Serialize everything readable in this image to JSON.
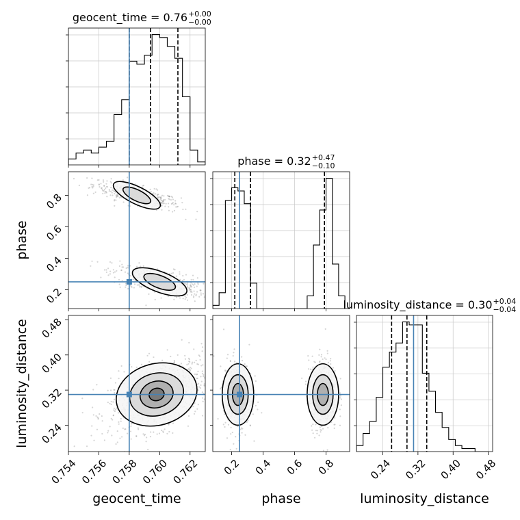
{
  "chart_data": {
    "type": "corner",
    "parameters": [
      "geocent_time",
      "phase",
      "luminosity_distance"
    ],
    "truth": {
      "geocent_time": 0.758,
      "phase": 0.25,
      "luminosity_distance": 0.31
    },
    "titles": [
      {
        "param": "geocent_time",
        "text": "geocent_time = 0.76",
        "sup": "+0.00",
        "sub": "−0.00"
      },
      {
        "param": "phase",
        "text": "phase = 0.32",
        "sup": "+0.47",
        "sub": "−0.10"
      },
      {
        "param": "luminosity_distance",
        "text": "luminosity_distance = 0.30",
        "sup": "+0.04",
        "sub": "−0.04"
      }
    ],
    "axes": {
      "geocent_time": {
        "range": [
          0.754,
          0.763
        ],
        "ticks": [
          0.754,
          0.756,
          0.758,
          0.76,
          0.762
        ],
        "tick_labels": [
          "0.754",
          "0.756",
          "0.758",
          "0.760",
          "0.762"
        ]
      },
      "phase": {
        "range": [
          0.08,
          0.95
        ],
        "ticks_x": [
          0.2,
          0.4,
          0.6,
          0.8
        ],
        "tick_labels_x": [
          "0.2",
          "0.4",
          "0.6",
          "0.8"
        ],
        "ticks_y": [
          0.2,
          0.4,
          0.6,
          0.8
        ],
        "tick_labels_y": [
          "0.2",
          "0.4",
          "0.6",
          "0.8"
        ]
      },
      "luminosity_distance": {
        "range": [
          0.18,
          0.49
        ],
        "ticks": [
          0.24,
          0.32,
          0.4,
          0.48
        ],
        "tick_labels": [
          "0.24",
          "0.32",
          "0.40",
          "0.48"
        ]
      }
    },
    "marginals": {
      "geocent_time": {
        "bin_edges": [
          0.754,
          0.7545,
          0.755,
          0.7555,
          0.756,
          0.7565,
          0.757,
          0.7575,
          0.758,
          0.7585,
          0.759,
          0.7595,
          0.76,
          0.7605,
          0.761,
          0.7615,
          0.762,
          0.7625,
          0.763
        ],
        "counts": [
          2,
          4,
          5,
          4,
          6,
          8,
          17,
          22,
          35,
          34,
          37,
          44,
          43,
          40,
          36,
          23,
          5,
          1
        ],
        "quantiles": [
          0.758,
          0.7594,
          0.7612
        ]
      },
      "phase": {
        "bin_edges": [
          0.08,
          0.12,
          0.16,
          0.2,
          0.24,
          0.28,
          0.32,
          0.36,
          0.4,
          0.44,
          0.48,
          0.52,
          0.56,
          0.6,
          0.64,
          0.68,
          0.72,
          0.76,
          0.8,
          0.84,
          0.88,
          0.92
        ],
        "counts": [
          1,
          5,
          34,
          38,
          37,
          33,
          8,
          0,
          0,
          0,
          0,
          0,
          0,
          0,
          0,
          4,
          20,
          31,
          41,
          14,
          4
        ],
        "quantiles": [
          0.22,
          0.32,
          0.79
        ]
      },
      "luminosity_distance": {
        "bin_edges": [
          0.18,
          0.195,
          0.21,
          0.225,
          0.24,
          0.255,
          0.27,
          0.285,
          0.3,
          0.315,
          0.33,
          0.345,
          0.36,
          0.375,
          0.39,
          0.405,
          0.42,
          0.435,
          0.45,
          0.465,
          0.48
        ],
        "counts": [
          2,
          6,
          10,
          18,
          28,
          33,
          36,
          43,
          42,
          42,
          26,
          20,
          13,
          8,
          4,
          2,
          1,
          1,
          0,
          0
        ],
        "quantiles": [
          0.26,
          0.295,
          0.34
        ]
      }
    },
    "joints": [
      {
        "x": "geocent_time",
        "y": "phase",
        "modes": [
          {
            "cx": 0.7585,
            "cy": 0.8,
            "sx": 0.0011,
            "sy": 0.035,
            "rho": -0.75,
            "weight": 0.5
          },
          {
            "cx": 0.76,
            "cy": 0.25,
            "sx": 0.0012,
            "sy": 0.04,
            "rho": -0.6,
            "weight": 0.5
          }
        ],
        "contours": [
          {
            "cx": 0.7585,
            "cy": 0.8,
            "levels": [
              [
                0.0017,
                0.055
              ],
              [
                0.001,
                0.035
              ]
            ]
          },
          {
            "cx": 0.76,
            "cy": 0.25,
            "levels": [
              [
                0.0019,
                0.065
              ],
              [
                0.0011,
                0.04
              ]
            ]
          }
        ]
      },
      {
        "x": "geocent_time",
        "y": "luminosity_distance",
        "modes": [
          {
            "cx": 0.76,
            "cy": 0.31,
            "sx": 0.0013,
            "sy": 0.032,
            "rho": 0.45,
            "weight": 1.0
          }
        ],
        "contours": [
          {
            "cx": 0.7598,
            "cy": 0.31,
            "levels": [
              [
                0.0027,
                0.07
              ],
              [
                0.0018,
                0.048
              ],
              [
                0.0011,
                0.03
              ],
              [
                0.0005,
                0.014
              ]
            ]
          }
        ]
      },
      {
        "x": "phase",
        "y": "luminosity_distance",
        "modes": [
          {
            "cx": 0.24,
            "cy": 0.31,
            "sx": 0.035,
            "sy": 0.032,
            "rho": 0.0,
            "weight": 0.5
          },
          {
            "cx": 0.78,
            "cy": 0.31,
            "sx": 0.035,
            "sy": 0.032,
            "rho": 0.0,
            "weight": 0.5
          }
        ],
        "contours": [
          {
            "cx": 0.24,
            "cy": 0.31,
            "levels": [
              [
                0.1,
                0.07
              ],
              [
                0.065,
                0.045
              ],
              [
                0.035,
                0.025
              ]
            ]
          },
          {
            "cx": 0.78,
            "cy": 0.31,
            "levels": [
              [
                0.1,
                0.07
              ],
              [
                0.065,
                0.045
              ],
              [
                0.035,
                0.025
              ]
            ]
          }
        ]
      }
    ],
    "colors": {
      "truth": "#4682b4",
      "hist": "#000000",
      "grid": "#c8c8c8",
      "scatter": "#888888"
    }
  }
}
